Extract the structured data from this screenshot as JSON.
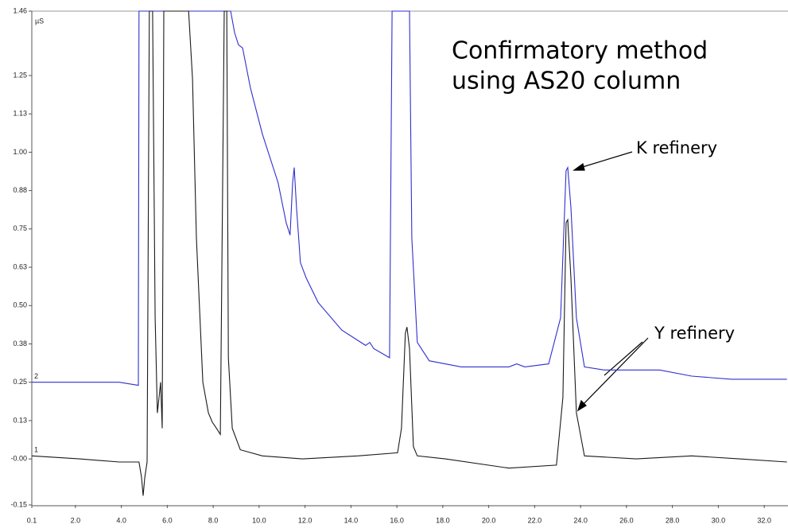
{
  "chart_data": {
    "type": "line",
    "y_unit": "µS",
    "annotations": [
      "Confirmatory method",
      "using AS20 column",
      "K refinery",
      "Y refinery"
    ],
    "xlim": [
      0.1,
      33.0
    ],
    "xticks": [
      0.1,
      {
        "value": 2,
        "label": "2.0"
      },
      {
        "value": 4,
        "label": "4.0"
      },
      {
        "value": 6,
        "label": "6.0"
      },
      {
        "value": 8,
        "label": "8.0"
      },
      {
        "value": 10,
        "label": "10.0"
      },
      {
        "value": 12,
        "label": "12.0"
      },
      {
        "value": 14,
        "label": "14.0"
      },
      {
        "value": 16,
        "label": "16.0"
      },
      {
        "value": 18,
        "label": "18.0"
      },
      {
        "value": 20,
        "label": "20.0"
      },
      {
        "value": 22,
        "label": "22.0"
      },
      {
        "value": 24,
        "label": "24.0"
      },
      {
        "value": 26,
        "label": "26.0"
      },
      {
        "value": 28,
        "label": "28.0"
      },
      {
        "value": 30,
        "label": "30.0"
      },
      {
        "value": 32,
        "label": "32.0"
      }
    ],
    "ylim": [
      -0.15,
      1.46
    ],
    "yticks": [
      -0.15,
      {
        "value": 0,
        "label": "-0.00"
      },
      {
        "value": 0.125,
        "label": "0.13"
      },
      0.25,
      {
        "value": 0.375,
        "label": "0.38"
      },
      {
        "value": 0.5,
        "label": "0.50"
      },
      {
        "value": 0.625,
        "label": "0.63"
      },
      0.75,
      {
        "value": 0.875,
        "label": "0.88"
      },
      {
        "value": 1,
        "label": "1.00"
      },
      {
        "value": 1.125,
        "label": "1.13"
      },
      1.25,
      1.46
    ],
    "series": [
      {
        "name": "2",
        "color": "#2f2fd0",
        "x": [
          0.1,
          2.18,
          3.91,
          4.74,
          4.77,
          8.76,
          8.93,
          9.1,
          9.28,
          9.62,
          10.14,
          10.83,
          11.18,
          11.35,
          11.46,
          11.53,
          11.63,
          11.8,
          12.05,
          12.57,
          13.6,
          14.64,
          14.82,
          14.99,
          15.68,
          15.79,
          16.55,
          16.65,
          16.89,
          17.41,
          18.8,
          20.88,
          21.22,
          21.57,
          22.61,
          23.13,
          23.37,
          23.44,
          23.58,
          23.82,
          24.17,
          25.03,
          26.07,
          27.45,
          28.84,
          30.57,
          31.96,
          32.99
        ],
        "values": [
          0.25,
          0.25,
          0.25,
          0.24,
          1.46,
          1.46,
          1.39,
          1.35,
          1.34,
          1.21,
          1.06,
          0.9,
          0.77,
          0.73,
          0.9,
          0.95,
          0.82,
          0.64,
          0.59,
          0.51,
          0.42,
          0.37,
          0.38,
          0.36,
          0.33,
          1.46,
          1.46,
          0.72,
          0.38,
          0.32,
          0.3,
          0.3,
          0.31,
          0.3,
          0.31,
          0.46,
          0.94,
          0.95,
          0.82,
          0.46,
          0.3,
          0.29,
          0.29,
          0.29,
          0.27,
          0.26,
          0.26,
          0.26
        ]
      },
      {
        "name": "1",
        "color": "#1a1a1a",
        "x": [
          0.1,
          2.18,
          3.91,
          4.77,
          4.88,
          4.95,
          5.02,
          5.12,
          5.22,
          5.36,
          5.47,
          5.57,
          5.64,
          5.71,
          5.78,
          5.85,
          5.92,
          6.93,
          7.1,
          7.27,
          7.55,
          7.79,
          7.96,
          8.14,
          8.31,
          8.48,
          8.59,
          8.66,
          8.83,
          9.18,
          10.14,
          11.87,
          14.3,
          16.03,
          16.2,
          16.37,
          16.44,
          16.55,
          16.72,
          16.89,
          18.11,
          20.88,
          22.95,
          23.23,
          23.37,
          23.44,
          23.58,
          23.82,
          24.17,
          26.42,
          28.84,
          30.92,
          32.99
        ],
        "values": [
          0.01,
          0.0,
          -0.01,
          -0.01,
          -0.06,
          -0.12,
          -0.06,
          -0.01,
          1.46,
          1.46,
          0.46,
          0.15,
          0.2,
          0.25,
          0.1,
          1.46,
          1.46,
          1.46,
          1.24,
          0.72,
          0.25,
          0.15,
          0.12,
          0.1,
          0.08,
          1.46,
          1.46,
          0.33,
          0.1,
          0.03,
          0.01,
          0.0,
          0.01,
          0.02,
          0.1,
          0.41,
          0.43,
          0.36,
          0.04,
          0.01,
          0.0,
          -0.03,
          -0.02,
          0.2,
          0.77,
          0.78,
          0.59,
          0.15,
          0.01,
          0.0,
          0.01,
          0.0,
          -0.01
        ]
      }
    ]
  }
}
